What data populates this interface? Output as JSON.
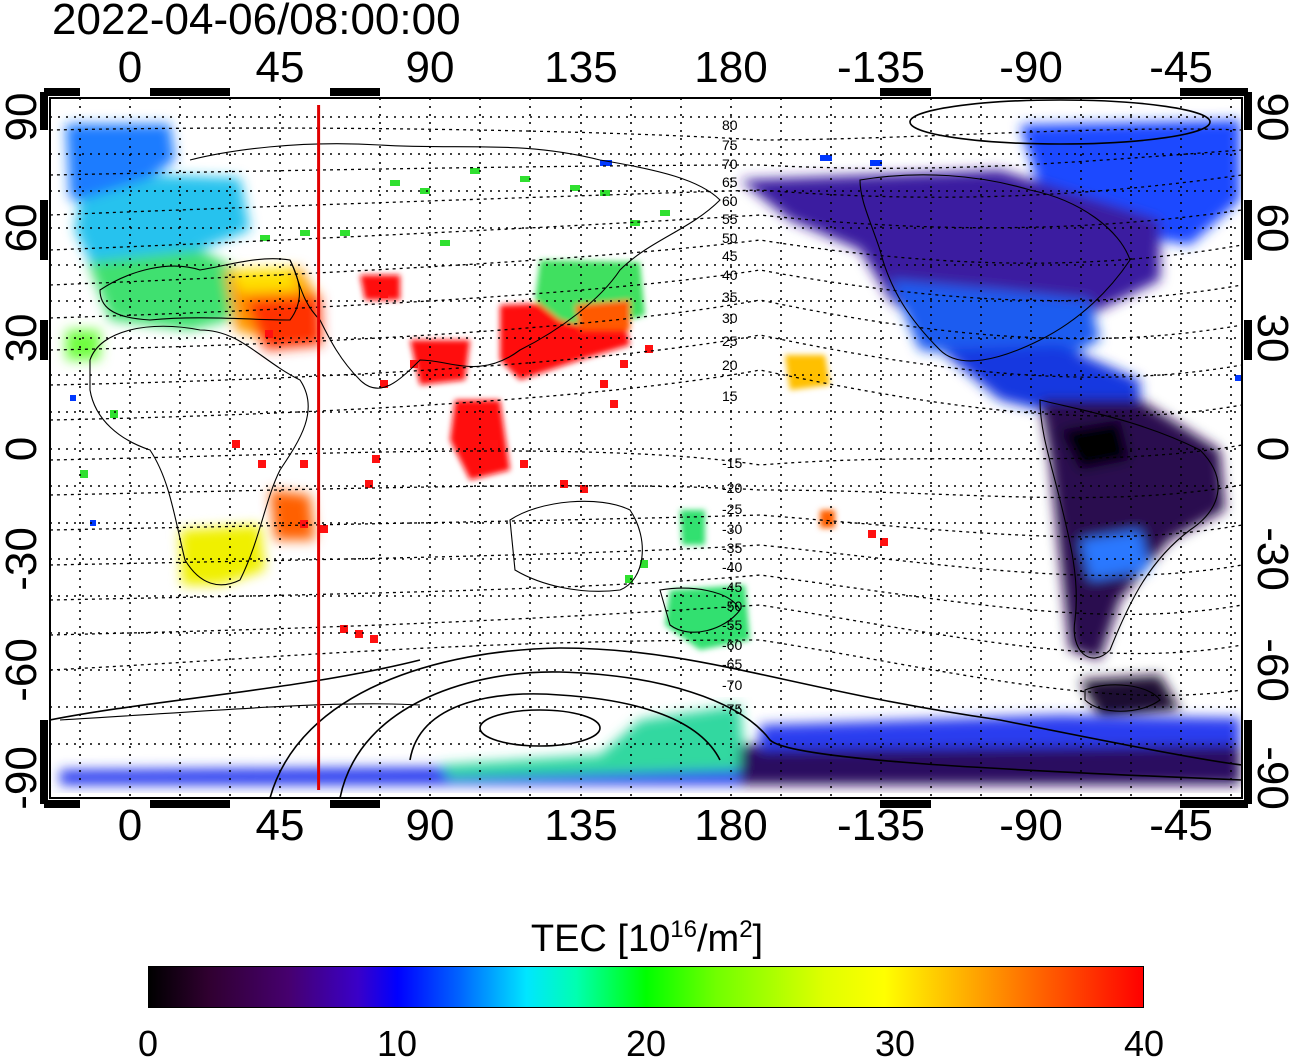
{
  "title": "2022-04-06/08:00:00",
  "axes": {
    "x_top_ticks": [
      "0",
      "45",
      "90",
      "135",
      "180",
      "-135",
      "-90",
      "-45"
    ],
    "x_bottom_ticks": [
      "0",
      "45",
      "90",
      "135",
      "180",
      "-135",
      "-90",
      "-45"
    ],
    "y_left_ticks": [
      "90",
      "60",
      "30",
      "0",
      "-30",
      "-60",
      "-90"
    ],
    "y_right_ticks": [
      "90",
      "60",
      "30",
      "0",
      "-30",
      "-60",
      "-90"
    ],
    "lon_range": [
      -20,
      335
    ],
    "lat_range": [
      -95,
      95
    ]
  },
  "meridian_marker": {
    "longitude": 60,
    "color": "#e00000"
  },
  "contour_labels": [
    "80",
    "75",
    "70",
    "65",
    "60",
    "55",
    "50",
    "45",
    "40",
    "35",
    "30",
    "25",
    "20",
    "15",
    "-15",
    "-20",
    "-25",
    "-30",
    "-35",
    "-40",
    "-45",
    "-50",
    "-55",
    "-60",
    "-65",
    "-70",
    "-75"
  ],
  "colorbar": {
    "title_main": "TEC  [10",
    "title_exp1": "16",
    "title_mid": "/m",
    "title_exp2": "2",
    "title_end": "]",
    "ticks": [
      "0",
      "10",
      "20",
      "30",
      "40"
    ],
    "range": [
      0,
      40
    ]
  }
}
